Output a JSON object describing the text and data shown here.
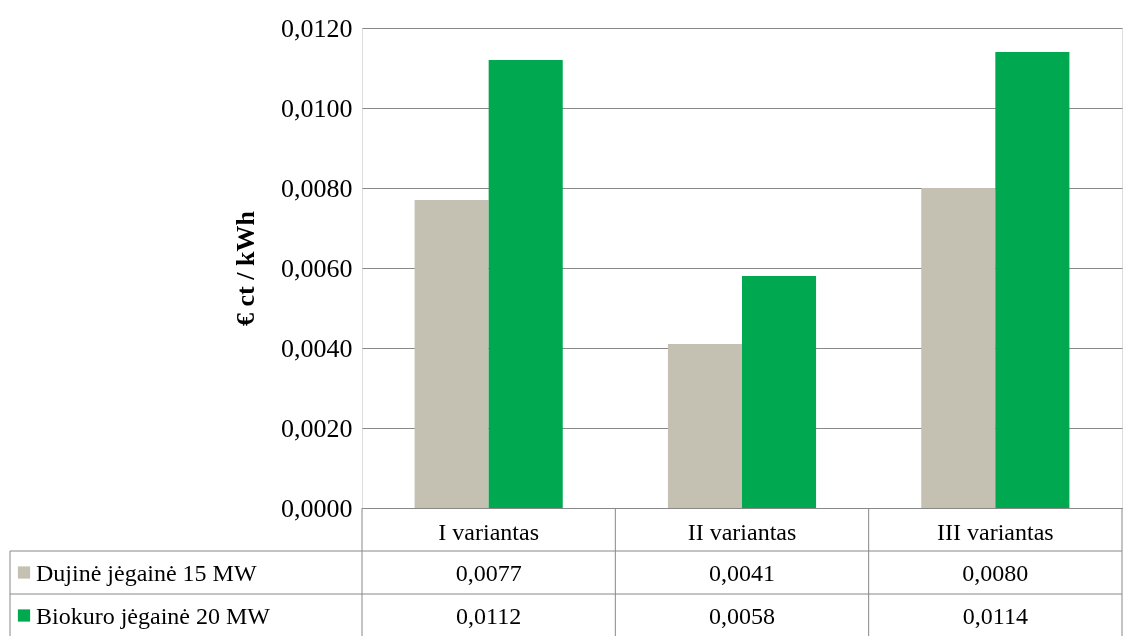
{
  "chart_data": {
    "type": "bar",
    "ylabel": "€ ct / kWh",
    "categories": [
      "I variantas",
      "II variantas",
      "III variantas"
    ],
    "series": [
      {
        "name": "Dujinė jėgainė 15 MW",
        "color": "#c4c1b2",
        "values": [
          0.0077,
          0.0041,
          0.008
        ],
        "value_labels": [
          "0,0077",
          "0,0041",
          "0,0080"
        ]
      },
      {
        "name": "Biokuro jėgainė 20 MW",
        "color": "#00a84f",
        "values": [
          0.0112,
          0.0058,
          0.0114
        ],
        "value_labels": [
          "0,0112",
          "0,0058",
          "0,0114"
        ]
      }
    ],
    "ylim": [
      0,
      0.012
    ],
    "yticks": [
      {
        "value": 0,
        "label": "0,0000"
      },
      {
        "value": 0.002,
        "label": "0,0020"
      },
      {
        "value": 0.004,
        "label": "0,0040"
      },
      {
        "value": 0.006,
        "label": "0,0060"
      },
      {
        "value": 0.008,
        "label": "0,0080"
      },
      {
        "value": 0.01,
        "label": "0,0100"
      },
      {
        "value": 0.012,
        "label": "0,0120"
      }
    ],
    "grid": "y",
    "legend": "bottom"
  }
}
